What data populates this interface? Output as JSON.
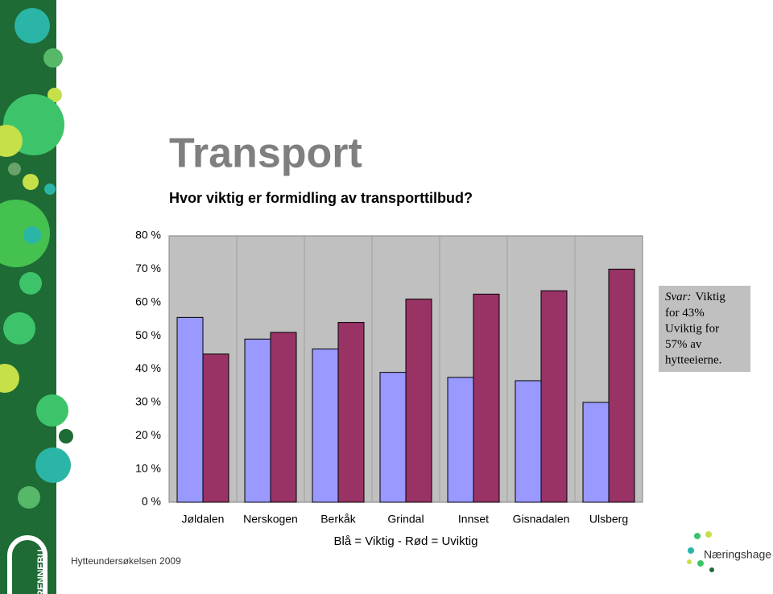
{
  "chart_data": {
    "type": "bar",
    "title": "Transport",
    "subtitle": "Hvor viktig er formidling av transporttilbud?",
    "categories": [
      "Jøldalen",
      "Nerskogen",
      "Berkåk",
      "Grindal",
      "Innset",
      "Gisnadalen",
      "Ulsberg"
    ],
    "series": [
      {
        "color": "#9999ff",
        "values": [
          55.5,
          49,
          46,
          39,
          37.5,
          36.5,
          30
        ]
      },
      {
        "color": "#993366",
        "values": [
          44.5,
          51,
          54,
          61,
          62.5,
          63.5,
          70
        ]
      }
    ],
    "ylim": [
      0,
      80
    ],
    "yticks": [
      {
        "value": 0,
        "label": "0 %"
      },
      {
        "value": 10,
        "label": "10 %"
      },
      {
        "value": 20,
        "label": "20 %"
      },
      {
        "value": 30,
        "label": "30 %"
      },
      {
        "value": 40,
        "label": "40 %"
      },
      {
        "value": 50,
        "label": "50 %"
      },
      {
        "value": 60,
        "label": "60 %"
      },
      {
        "value": 70,
        "label": "70 %"
      },
      {
        "value": 80,
        "label": "80 %"
      }
    ],
    "legend_text": "Blå = Viktig - Rød = Uviktig",
    "annotation": {
      "prefix": "Svar:",
      "lines": [
        "Viktig",
        "for 43%",
        "Uviktig for",
        "57% av",
        "hytteeierne."
      ]
    },
    "footer": "Hytteundersøkelsen 2009",
    "logo_left": "RENNEBU",
    "logo_right": "Næringshage"
  }
}
